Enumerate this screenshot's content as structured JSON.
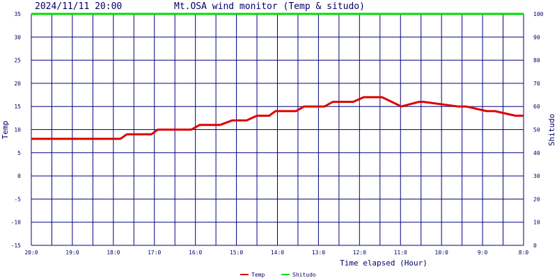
{
  "header": {
    "timestamp": "2024/11/11 20:00",
    "title": "Mt.OSA wind monitor (Temp & situdo)"
  },
  "chart_data": {
    "type": "line",
    "title": "Mt.OSA wind monitor (Temp & situdo)",
    "xlabel": "Time elapsed (Hour)",
    "ylabel_left": "Temp",
    "ylabel_right": "Shitudo",
    "ylim_left": [
      -15,
      35
    ],
    "ylim_right": [
      0,
      100
    ],
    "yticks_left": [
      "35",
      "30",
      "25",
      "20",
      "15",
      "10",
      "5",
      "0",
      "-5",
      "-10",
      "-15"
    ],
    "yticks_right": [
      "100",
      "90",
      "80",
      "70",
      "60",
      "50",
      "40",
      "30",
      "20",
      "10",
      "0"
    ],
    "xticks": [
      "20:0",
      "19:0",
      "18:0",
      "17:0",
      "16:0",
      "15:0",
      "14:0",
      "13:0",
      "12:0",
      "11:0",
      "10:0",
      "9:0",
      "8:0"
    ],
    "grid": true,
    "legend_position": "bottom-center",
    "series": [
      {
        "name": "Temp",
        "color": "#dd0000",
        "axis": "left",
        "hours": [
          12,
          9.83,
          9.67,
          9.07,
          8.92,
          8.1,
          7.9,
          7.4,
          7.1,
          6.75,
          6.5,
          6.2,
          6.05,
          5.55,
          5.35,
          4.85,
          4.65,
          4.15,
          3.9,
          3.45,
          2.98,
          2.55,
          2.45,
          1.6,
          1.4,
          0.9,
          0.7,
          0.2,
          0
        ],
        "values": [
          8,
          8,
          9,
          9,
          10,
          10,
          11,
          11,
          12,
          12,
          13,
          13,
          14,
          14,
          15,
          15,
          16,
          16,
          17,
          17,
          15,
          16,
          16,
          15,
          15,
          14,
          14,
          13,
          13
        ]
      },
      {
        "name": "Shitudo",
        "color": "#00dd00",
        "axis": "right",
        "hours": [
          12,
          0
        ],
        "values": [
          100,
          100
        ]
      }
    ]
  }
}
